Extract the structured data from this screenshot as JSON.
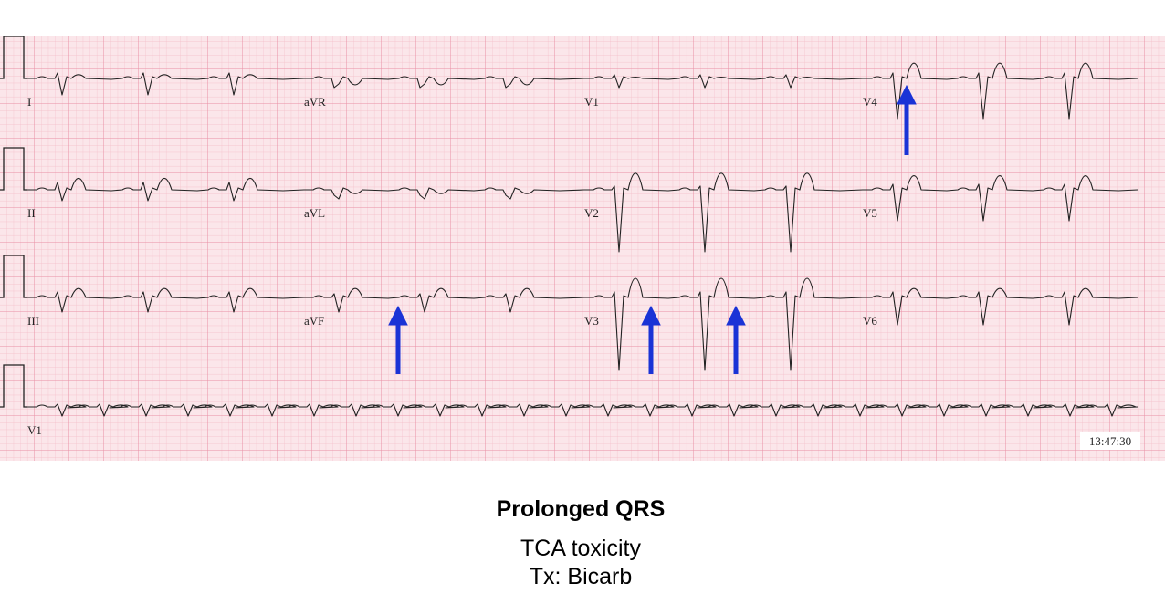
{
  "leads": {
    "rows": [
      [
        "I",
        "aVR",
        "V1",
        "V4"
      ],
      [
        "II",
        "aVL",
        "V2",
        "V5"
      ],
      [
        "III",
        "aVF",
        "V3",
        "V6"
      ],
      [
        "V1"
      ]
    ]
  },
  "timestamp": "13:47:30",
  "caption": {
    "title": "Prolonged QRS",
    "lines": [
      "TCA toxicity",
      "Tx: Bicarb"
    ]
  }
}
